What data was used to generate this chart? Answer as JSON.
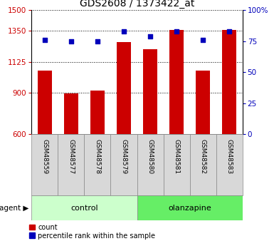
{
  "title": "GDS2608 / 1373422_at",
  "samples": [
    "GSM48559",
    "GSM48577",
    "GSM48578",
    "GSM48579",
    "GSM48580",
    "GSM48581",
    "GSM48582",
    "GSM48583"
  ],
  "counts": [
    1060,
    895,
    915,
    1270,
    1215,
    1355,
    1060,
    1355
  ],
  "percentiles": [
    76,
    75,
    75,
    83,
    79,
    83,
    76,
    83
  ],
  "ylim_left": [
    600,
    1500
  ],
  "ylim_right": [
    0,
    100
  ],
  "yticks_left": [
    600,
    900,
    1125,
    1350,
    1500
  ],
  "yticks_right": [
    0,
    25,
    50,
    75,
    100
  ],
  "bar_color": "#cc0000",
  "dot_color": "#0000bb",
  "control_color": "#ccffcc",
  "olanzapine_color": "#66ee66",
  "sample_box_color": "#d8d8d8",
  "left_tick_color": "#cc0000",
  "right_tick_color": "#0000bb",
  "title_fontsize": 10,
  "tick_fontsize": 7.5,
  "sample_fontsize": 6.5,
  "group_fontsize": 8,
  "legend_fontsize": 7,
  "bar_width": 0.55
}
